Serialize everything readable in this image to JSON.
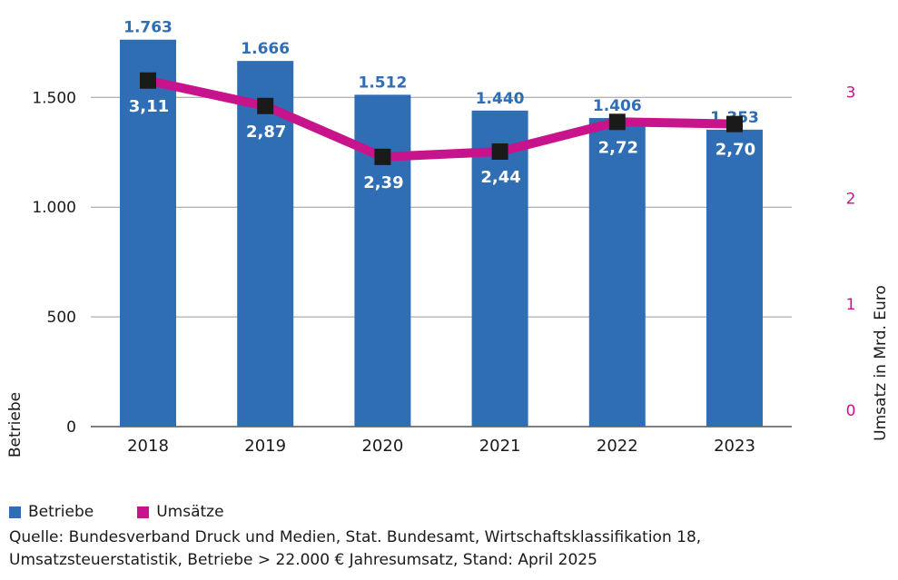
{
  "colors": {
    "bars": "#2f6db5",
    "bar_label": "#2f6db5",
    "line": "#c8148c",
    "marker": "#1a1a1a",
    "right_axis": "#c8148c",
    "grid": "#9a9a9a"
  },
  "chart_data": {
    "type": "bar+line",
    "categories": [
      "2018",
      "2019",
      "2020",
      "2021",
      "2022",
      "2023"
    ],
    "series": [
      {
        "name": "Betriebe",
        "type": "bar",
        "axis": "left",
        "values": [
          1763,
          1666,
          1512,
          1440,
          1406,
          1353
        ],
        "labels": [
          "1.763",
          "1.666",
          "1.512",
          "1.440",
          "1.406",
          "1.353"
        ]
      },
      {
        "name": "Umsätze",
        "type": "line",
        "axis": "right",
        "values": [
          3.11,
          2.87,
          2.39,
          2.44,
          2.72,
          2.7
        ],
        "labels": [
          "3,11",
          "2,87",
          "2,39",
          "2,44",
          "2,72",
          "2,70"
        ]
      }
    ],
    "y_left": {
      "label": "Betriebe",
      "ticks": [
        0,
        500,
        1000,
        1500
      ],
      "tick_labels": [
        "0",
        "500",
        "1.000",
        "1.500"
      ],
      "ylim": [
        0,
        1750
      ]
    },
    "y_right": {
      "label": "Umsatz in Mrd. Euro",
      "ticks": [
        0,
        1,
        2,
        3
      ],
      "tick_labels": [
        "0",
        "1",
        "2",
        "3"
      ],
      "ylim": [
        0,
        3.2
      ]
    },
    "grid": true,
    "legend": "bottom-left"
  },
  "source": {
    "line1": "Quelle: Bundesverband Druck und Medien, Stat. Bundesamt, Wirtschaftsklassifikation 18,",
    "line2": "Umsatzsteuerstatistik,  Betriebe > 22.000 € Jahresumsatz, Stand: April 2025"
  }
}
